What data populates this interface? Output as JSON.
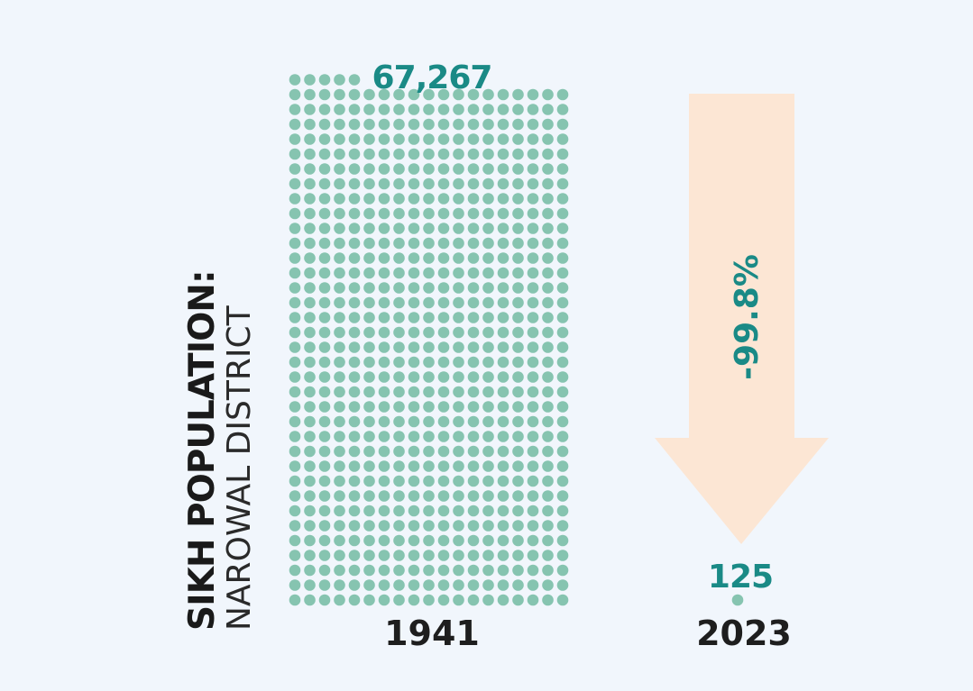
{
  "title": {
    "line1": "SIKH POPULATION:",
    "line2": "NAROWAL DISTRICT"
  },
  "colors": {
    "dot": "#86c4b0",
    "value_text": "#1a8a86",
    "arrow": "#fce6d4",
    "year_text": "#1e1e1e"
  },
  "chart_data": {
    "type": "bar",
    "categories": [
      "1941",
      "2023"
    ],
    "values": [
      67267,
      125
    ],
    "data_labels": [
      "67,267",
      "125"
    ],
    "change_label": "-99.8%"
  }
}
